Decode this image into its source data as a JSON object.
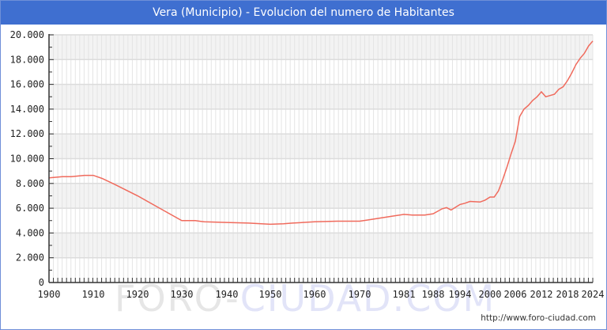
{
  "header": {
    "title": "Vera (Municipio) - Evolucion del numero de Habitantes"
  },
  "footer": {
    "credit": "http://www.foro-ciudad.com",
    "watermark_left": "FORO-",
    "watermark_right": "CIUDAD.COM"
  },
  "colors": {
    "title_bar": "#3f6fd0",
    "line": "#f06a5c",
    "grid": "#dddddd",
    "band": "#f3f3f3",
    "axis": "#333333"
  },
  "chart_data": {
    "type": "line",
    "title": "Vera (Municipio) - Evolucion del numero de Habitantes",
    "xlabel": "",
    "ylabel": "",
    "ylim": [
      0,
      20000
    ],
    "grid": true,
    "legend": "none",
    "y_ticks": [
      "0",
      "2.000",
      "4.000",
      "6.000",
      "8.000",
      "10.000",
      "12.000",
      "14.000",
      "16.000",
      "18.000",
      "20.000"
    ],
    "x_ticks": [
      "1900",
      "1910",
      "1920",
      "1930",
      "1940",
      "1950",
      "1960",
      "1970",
      "1981",
      "1988",
      "1994",
      "2000",
      "2006",
      "2012",
      "2018",
      "2024"
    ],
    "series": [
      {
        "name": "Habitantes",
        "x": [
          1900,
          1903,
          1905,
          1908,
          1910,
          1912,
          1915,
          1920,
          1925,
          1930,
          1933,
          1935,
          1940,
          1945,
          1950,
          1953,
          1955,
          1960,
          1965,
          1970,
          1972,
          1975,
          1978,
          1981,
          1983,
          1986,
          1988,
          1990,
          1991,
          1992,
          1994,
          1995,
          1996,
          1998,
          1999,
          2000,
          2001,
          2002,
          2003,
          2004,
          2005,
          2006,
          2007,
          2008,
          2009,
          2010,
          2011,
          2012,
          2013,
          2014,
          2015,
          2016,
          2017,
          2018,
          2019,
          2020,
          2021,
          2022,
          2023,
          2024
        ],
        "values": [
          8450,
          8550,
          8550,
          8650,
          8650,
          8400,
          7900,
          7000,
          6000,
          5000,
          5000,
          4900,
          4850,
          4800,
          4700,
          4750,
          4800,
          4900,
          4950,
          4950,
          5050,
          5200,
          5350,
          5500,
          5450,
          5450,
          5550,
          5950,
          6050,
          5850,
          6300,
          6400,
          6550,
          6500,
          6650,
          6900,
          6900,
          7400,
          8300,
          9300,
          10400,
          11400,
          13400,
          14000,
          14300,
          14700,
          15000,
          15400,
          15000,
          15100,
          15200,
          15600,
          15800,
          16300,
          16900,
          17600,
          18100,
          18500,
          19100,
          19500
        ]
      }
    ]
  }
}
